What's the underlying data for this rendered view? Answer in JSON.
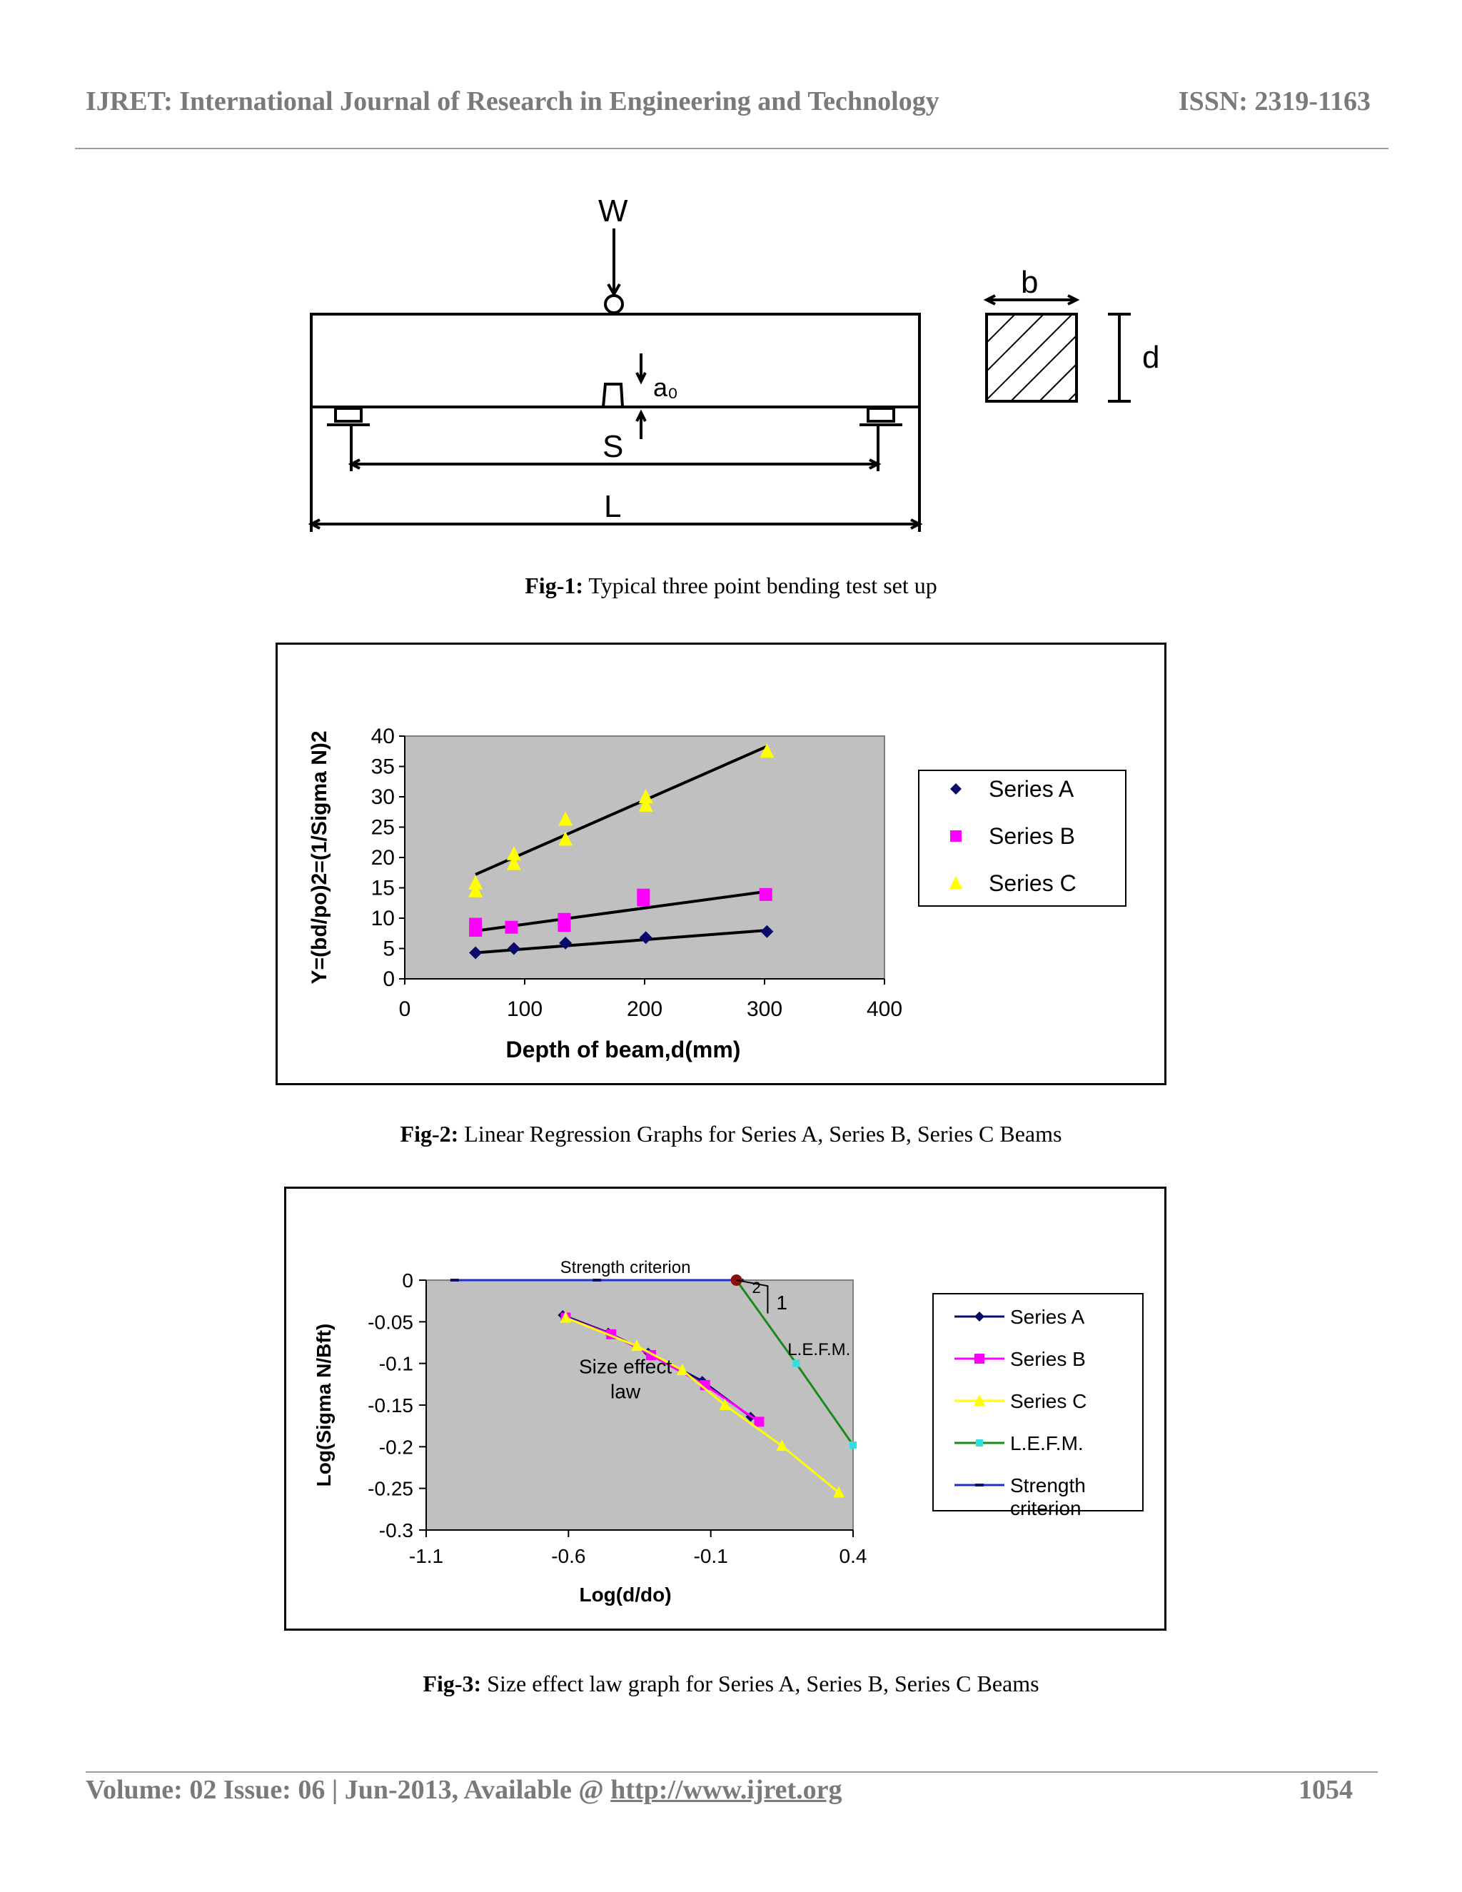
{
  "header": {
    "journal": "IJRET: International Journal of Research in Engineering and Technology",
    "issn": "ISSN: 2319-1163"
  },
  "fig1": {
    "labels": {
      "load": "W",
      "notch": "a₀",
      "span": "S",
      "length": "L",
      "width": "b",
      "depth": "d"
    },
    "caption_bold": "Fig-1:",
    "caption_text": " Typical three point bending test set up"
  },
  "fig2": {
    "caption_bold": "Fig-2:",
    "caption_text": " Linear Regression Graphs for Series A, Series B, Series C Beams"
  },
  "fig3": {
    "caption_bold": "Fig-3:",
    "caption_text": " Size effect law graph for Series A, Series B, Series C Beams",
    "annotations": {
      "strength": "Strength criterion",
      "size_effect_1": "Size effect",
      "size_effect_2": "law",
      "lefm": "L.E.F.M.",
      "slope_2": "2",
      "slope_1": "1"
    }
  },
  "chart_data": [
    {
      "type": "scatter",
      "title": "",
      "xlabel": "Depth of beam,d(mm)",
      "ylabel": "Y=(bd/po)2=(1/Sigma N)2",
      "xlim": [
        0,
        400
      ],
      "ylim": [
        0,
        40
      ],
      "xticks": [
        "0",
        "100",
        "200",
        "300",
        "400"
      ],
      "yticks": [
        "0",
        "5",
        "10",
        "15",
        "20",
        "25",
        "30",
        "35",
        "40"
      ],
      "background": "#c0c0c0",
      "legend_position": "right",
      "series": [
        {
          "name": "Series A",
          "marker": "diamond",
          "color": "#0b0b6b",
          "x": [
            59,
            91,
            134,
            201,
            302
          ],
          "y": [
            4.3,
            5.0,
            5.9,
            6.8,
            7.8
          ],
          "fit": [
            [
              59,
              4.3
            ],
            [
              302,
              8.0
            ]
          ]
        },
        {
          "name": "Series B",
          "marker": "square",
          "color": "#ff00ff",
          "x": [
            59,
            59,
            89,
            133,
            133,
            199,
            199,
            301
          ],
          "y": [
            8.0,
            9.0,
            8.5,
            8.8,
            9.8,
            13.0,
            13.8,
            13.9
          ],
          "fit": [
            [
              59,
              7.9
            ],
            [
              302,
              14.4
            ]
          ]
        },
        {
          "name": "Series C",
          "marker": "triangle",
          "color": "#ffff00",
          "x": [
            59,
            59,
            91,
            91,
            134,
            134,
            201,
            201,
            302
          ],
          "y": [
            14.5,
            15.8,
            19.0,
            20.6,
            23.0,
            26.3,
            28.6,
            30.0,
            37.5
          ],
          "fit": [
            [
              59,
              17.2
            ],
            [
              302,
              38.3
            ]
          ]
        }
      ]
    },
    {
      "type": "line",
      "title": "",
      "xlabel": "Log(d/do)",
      "ylabel": "Log(Sigma N/Bft)",
      "xlim": [
        -1.1,
        0.4
      ],
      "ylim": [
        -0.3,
        0
      ],
      "xticks": [
        "-1.1",
        "-0.6",
        "-0.1",
        "0.4"
      ],
      "yticks": [
        "0",
        "-0.05",
        "-0.1",
        "-0.15",
        "-0.2",
        "-0.25",
        "-0.3"
      ],
      "background": "#c0c0c0",
      "legend_position": "right",
      "series": [
        {
          "name": "Series A",
          "color": "#0b0b6b",
          "x": [
            -0.62,
            -0.46,
            -0.32,
            -0.13,
            0.04
          ],
          "y": [
            -0.042,
            -0.063,
            -0.087,
            -0.121,
            -0.164
          ]
        },
        {
          "name": "Series B",
          "color": "#ff00ff",
          "x": [
            -0.61,
            -0.45,
            -0.31,
            -0.12,
            0.07
          ],
          "y": [
            -0.045,
            -0.065,
            -0.09,
            -0.126,
            -0.17
          ]
        },
        {
          "name": "Series C",
          "color": "#ffff00",
          "x": [
            -0.61,
            -0.36,
            -0.2,
            -0.05,
            0.15,
            0.35
          ],
          "y": [
            -0.045,
            -0.079,
            -0.108,
            -0.15,
            -0.199,
            -0.255
          ]
        },
        {
          "name": "L.E.F.M.",
          "color": "#1a8a1a",
          "x": [
            -0.01,
            0.2,
            0.4
          ],
          "y": [
            0.0,
            -0.1,
            -0.198
          ]
        },
        {
          "name": "Strength criterion",
          "color": "#2030d0",
          "x": [
            -1.0,
            -0.5,
            0.0
          ],
          "y": [
            0.0,
            0.0,
            0.0
          ]
        }
      ]
    }
  ],
  "footer": {
    "left_text": "Volume: 02 Issue: 06 | Jun-2013, Available @ ",
    "link": "http://www.ijret.org",
    "page": "1054"
  }
}
